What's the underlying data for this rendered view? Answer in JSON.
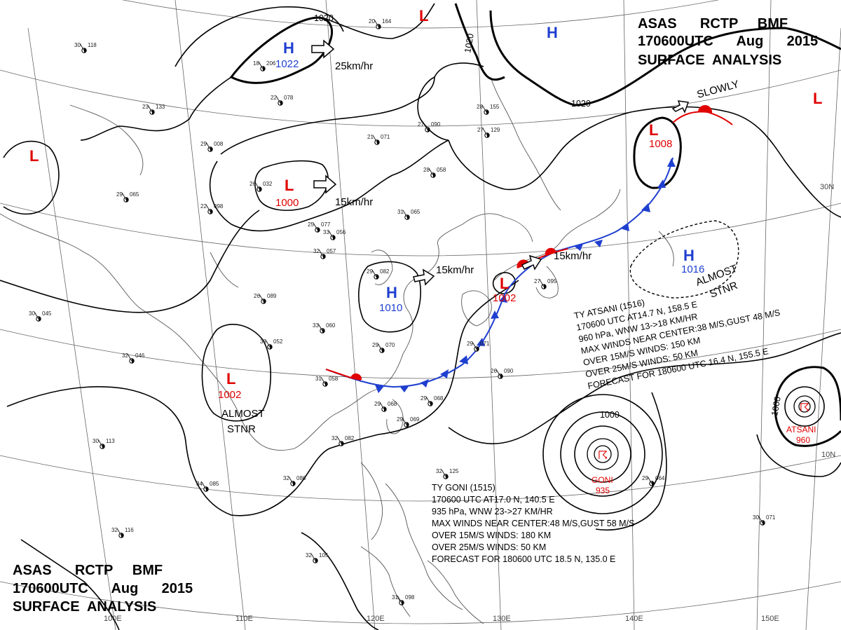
{
  "header_top": {
    "line1": "ASAS      RCTP     BMF",
    "line2": "170600UTC      Aug      2015",
    "line3": "SURFACE  ANALYSIS"
  },
  "header_bottom": {
    "line1": "ASAS      RCTP     BMF",
    "line2": "170600UTC      Aug      2015",
    "line3": "SURFACE  ANALYSIS"
  },
  "isobars": {
    "l1020a": "1020",
    "l1020b": "1020",
    "l1020c": "1020",
    "l1000a": "1000",
    "l1000b": "1000"
  },
  "pressure_centers": {
    "h_north": {
      "symbol": "H",
      "value": "1022"
    },
    "h_ne": {
      "symbol": "H"
    },
    "h_east": {
      "symbol": "H",
      "value": "1016"
    },
    "h_yellow_sea": {
      "symbol": "H",
      "value": "1010"
    },
    "l_north": {
      "symbol": "L"
    },
    "l_far_east": {
      "symbol": "L"
    },
    "l_west": {
      "symbol": "L"
    },
    "l_mongolia": {
      "symbol": "L",
      "value": "1000"
    },
    "l_south_china": {
      "symbol": "L",
      "value": "1002"
    },
    "l_korea": {
      "symbol": "L",
      "value": "1002"
    },
    "l_kamchatka": {
      "symbol": "L",
      "value": "1008"
    }
  },
  "motion_labels": {
    "m1": "25km/hr",
    "m2": "15km/hr",
    "m3": "15km/hr",
    "m4": "15km/hr",
    "m5": "SLOWLY",
    "m6a": "ALMOST",
    "m6b": "STNR",
    "m7a": "ALMOST",
    "m7b": "STNR"
  },
  "typhoon_goni": {
    "marker_name": "GONI",
    "marker_pressure": "935",
    "bulletin": [
      "TY  GONI  (1515)",
      "170600 UTC  AT17.0 N, 140.5 E",
      "935 hPa, WNW  23->27 KM/HR",
      "MAX WINDS NEAR CENTER:48 M/S,GUST 58 M/S",
      "OVER 15M/S WINDS: 180 KM",
      "OVER 25M/S WINDS: 50 KM",
      "FORECAST FOR 180600 UTC 18.5 N, 135.0 E"
    ]
  },
  "typhoon_atsani": {
    "marker_name": "ATSANI",
    "marker_pressure": "960",
    "bulletin": [
      "TY  ATSANI  (1516)",
      "170600 UTC  AT14.7 N, 158.5 E",
      "960 hPa, WNW  13->18 KM/HR",
      "MAX WINDS NEAR CENTER:38 M/S,GUST 48 M/S",
      "OVER 15M/S WINDS: 150 KM",
      "OVER 25M/S WINDS: 50 KM",
      "FORECAST FOR 180600 UTC 16.4 N, 155.5 E"
    ]
  },
  "grid_labels": {
    "lon100": "100E",
    "lon110": "110E",
    "lon120": "120E",
    "lon130": "130E",
    "lon140": "140E",
    "lon150": "150E",
    "lat30": "30N",
    "lat10": "10N"
  },
  "stations": [
    {
      "t": "29",
      "p": "008"
    },
    {
      "t": "30",
      "p": "118"
    },
    {
      "t": "23",
      "p": "133"
    },
    {
      "t": "18",
      "p": "206"
    },
    {
      "t": "22",
      "p": "078"
    },
    {
      "t": "21",
      "p": "071"
    },
    {
      "t": "27",
      "p": "090"
    },
    {
      "t": "20",
      "p": "164"
    },
    {
      "t": "27",
      "p": "129"
    },
    {
      "t": "26",
      "p": "032"
    },
    {
      "t": "29",
      "p": "065"
    },
    {
      "t": "22",
      "p": "098"
    },
    {
      "t": "25",
      "p": "077"
    },
    {
      "t": "33",
      "p": "056"
    },
    {
      "t": "31",
      "p": "065"
    },
    {
      "t": "28",
      "p": "058"
    },
    {
      "t": "32",
      "p": "057"
    },
    {
      "t": "29",
      "p": "082"
    },
    {
      "t": "26",
      "p": "089"
    },
    {
      "t": "33",
      "p": "060"
    },
    {
      "t": "29",
      "p": "070"
    },
    {
      "t": "31",
      "p": "058"
    },
    {
      "t": "32",
      "p": "046"
    },
    {
      "t": "33",
      "p": "052"
    },
    {
      "t": "30",
      "p": "045"
    },
    {
      "t": "29",
      "p": "068"
    },
    {
      "t": "29",
      "p": "069"
    },
    {
      "t": "32",
      "p": "082"
    },
    {
      "t": "32",
      "p": "086"
    },
    {
      "t": "34",
      "p": "085"
    },
    {
      "t": "30",
      "p": "113"
    },
    {
      "t": "32",
      "p": "116"
    },
    {
      "t": "32",
      "p": "105"
    },
    {
      "t": "31",
      "p": "098"
    },
    {
      "t": "29",
      "p": "068"
    },
    {
      "t": "29",
      "p": "071"
    },
    {
      "t": "27",
      "p": "095"
    },
    {
      "t": "26",
      "p": "090"
    },
    {
      "t": "32",
      "p": "125"
    },
    {
      "t": "29",
      "p": "064"
    },
    {
      "t": "30",
      "p": "071"
    },
    {
      "t": "28",
      "p": "155"
    }
  ],
  "colors": {
    "low": "#e00000",
    "high": "#1f3fd0",
    "front_cold": "#1f3fd0",
    "front_warm": "#e00000",
    "isobar": "#000000",
    "coast": "#555555"
  }
}
